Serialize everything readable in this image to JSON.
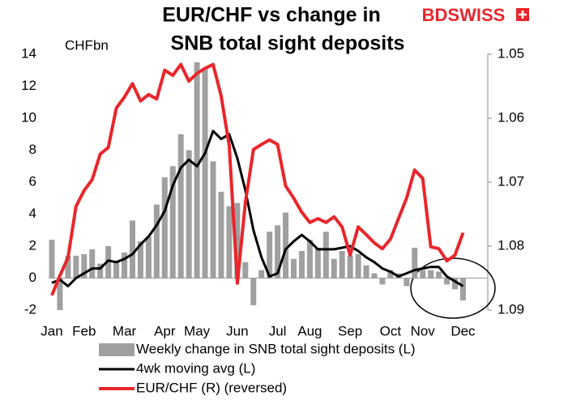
{
  "chart_data": {
    "type": "combo",
    "title": [
      "EUR/CHF vs change in",
      "SNB total sight deposits"
    ],
    "logo": "BDSWISS",
    "ylabel": "CHFbn",
    "categories": [
      "Jan",
      null,
      null,
      null,
      "Feb",
      null,
      null,
      null,
      null,
      "Mar",
      null,
      null,
      null,
      null,
      "Apr",
      null,
      null,
      null,
      "May",
      null,
      null,
      null,
      null,
      "Jun",
      null,
      null,
      null,
      null,
      "Jul",
      null,
      null,
      null,
      "Aug",
      null,
      null,
      null,
      null,
      "Sep",
      null,
      null,
      null,
      null,
      "Oct",
      null,
      null,
      null,
      "Nov",
      null,
      null,
      null,
      null,
      "Dec"
    ],
    "ylim": [
      -2,
      14
    ],
    "yticks": [
      -2,
      0,
      2,
      4,
      6,
      8,
      10,
      12,
      14
    ],
    "y2lim": [
      1.05,
      1.09
    ],
    "y2ticks": [
      1.05,
      1.06,
      1.07,
      1.08,
      1.09
    ],
    "y2reversed": true,
    "series": [
      {
        "name": "Weekly change in SNB total sight deposits (L)",
        "type": "bar",
        "color": "#a0a0a0",
        "values": [
          2.4,
          -2.0,
          1.4,
          1.4,
          1.5,
          1.8,
          0.9,
          2.0,
          1.0,
          1.6,
          3.6,
          2.3,
          2.6,
          4.6,
          6.3,
          7.0,
          9.0,
          8.0,
          13.5,
          13.1,
          7.3,
          5.4,
          4.5,
          4.7,
          1.0,
          -1.7,
          0.5,
          2.9,
          3.3,
          4.1,
          1.2,
          1.7,
          2.4,
          1.9,
          2.9,
          1.2,
          1.7,
          1.4,
          1.5,
          0.8,
          0.3,
          -0.4,
          0.5,
          0.3,
          -0.5,
          1.9,
          0.5,
          0.5,
          0.4,
          -0.4,
          -0.7,
          -1.4
        ]
      },
      {
        "name": "4wk moving avg (L)",
        "type": "line",
        "color": "#000000",
        "values": [
          -0.3,
          -0.1,
          -0.5,
          0.0,
          0.3,
          0.6,
          0.6,
          1.1,
          1.0,
          1.2,
          1.5,
          2.1,
          2.6,
          3.3,
          4.2,
          5.8,
          6.9,
          7.4,
          7.0,
          7.8,
          9.2,
          8.7,
          9.0,
          7.5,
          5.5,
          3.0,
          1.3,
          0.1,
          0.3,
          1.8,
          2.3,
          2.7,
          2.3,
          1.8,
          1.8,
          1.8,
          1.9,
          2.0,
          1.7,
          1.3,
          1.0,
          0.6,
          0.4,
          0.1,
          0.3,
          0.5,
          0.6,
          0.7,
          0.7,
          0.1,
          -0.2,
          -0.5
        ]
      },
      {
        "name": "EUR/CHF (R) (reversed)",
        "type": "line",
        "color": "#e8262b",
        "axis": "y2",
        "values": [
          1.0877,
          1.0846,
          1.0818,
          1.0738,
          1.0713,
          1.0696,
          1.0656,
          1.0646,
          1.0584,
          1.0567,
          1.0546,
          1.0573,
          1.0563,
          1.057,
          1.0525,
          1.0533,
          1.0516,
          1.0542,
          1.053,
          1.0522,
          1.0516,
          1.0565,
          1.0643,
          1.0858,
          1.0732,
          1.0649,
          1.0641,
          1.0634,
          1.0641,
          1.0706,
          1.0725,
          1.0747,
          1.0763,
          1.0757,
          1.0763,
          1.0754,
          1.077,
          1.0814,
          1.077,
          1.0782,
          1.0795,
          1.0804,
          1.0789,
          1.0757,
          1.0725,
          1.0681,
          1.0694,
          1.0801,
          1.0804,
          1.0823,
          1.0814,
          1.0779
        ]
      }
    ]
  }
}
